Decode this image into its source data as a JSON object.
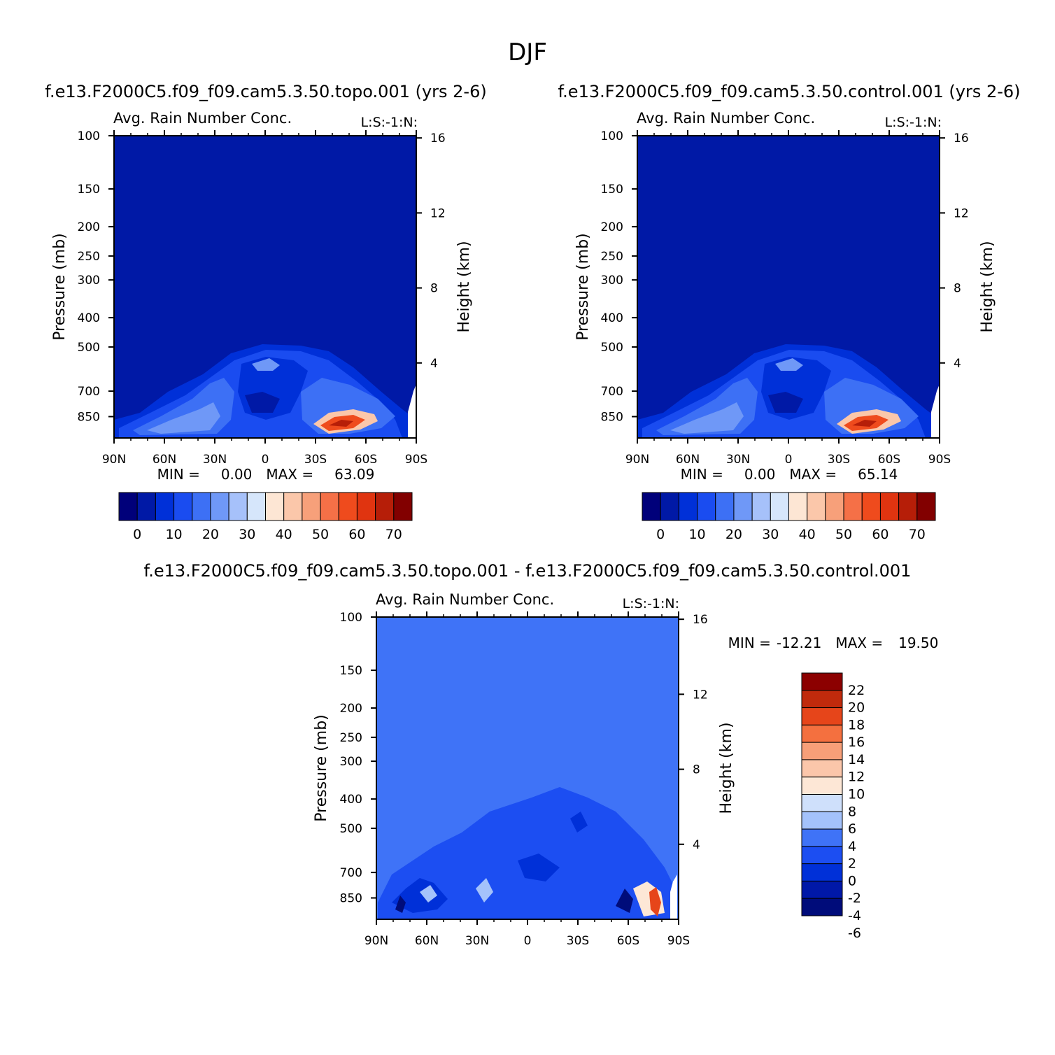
{
  "figure": {
    "title": "DJF",
    "colors": {
      "contour_scale": [
        "#00007a",
        "#0019a6",
        "#0030d8",
        "#1a4cf0",
        "#3d70f5",
        "#6f98f7",
        "#a6c1fa",
        "#d6e6fb",
        "#fde6d4",
        "#fbc7aa",
        "#f7a07a",
        "#f57047",
        "#ef4b1d",
        "#e03410",
        "#b61e08",
        "#820000"
      ],
      "background_field": "#0a28c4",
      "diff_background": "#3f73f7",
      "diff_scale": [
        "#000c7a",
        "#0018a8",
        "#0030d8",
        "#1c4ef2",
        "#3f73f7",
        "#a4c2fb",
        "#cfe0fb",
        "#fde7d6",
        "#fbc6aa",
        "#f79f78",
        "#f4703f",
        "#e6451a",
        "#c02a0c",
        "#8c0000"
      ]
    }
  },
  "chart_data": [
    {
      "type": "heatmap",
      "title": "f.e13.F2000C5.f09_f09.cam5.3.50.topo.001 (yrs 2-6)",
      "subtitle": "Avg. Rain Number Conc.",
      "corner_label": "L:S:-1:N:",
      "xlabel": "",
      "ylabel": "Pressure (mb)",
      "y2label": "Height (km)",
      "x_ticks": [
        "90N",
        "60N",
        "30N",
        "0",
        "30S",
        "60S",
        "90S"
      ],
      "y_ticks": [
        100,
        150,
        200,
        250,
        300,
        400,
        500,
        700,
        850
      ],
      "y2_ticks": [
        16,
        12,
        8,
        4
      ],
      "ylim": [
        100,
        1000
      ],
      "y_scale": "log",
      "min_label": "MIN =",
      "min_value": "0.00",
      "max_label": "MAX =",
      "max_value": "63.09",
      "colorbar_labels": [
        "0",
        "10",
        "20",
        "30",
        "40",
        "50",
        "60",
        "70"
      ]
    },
    {
      "type": "heatmap",
      "title": "f.e13.F2000C5.f09_f09.cam5.3.50.control.001 (yrs 2-6)",
      "subtitle": "Avg. Rain Number Conc.",
      "corner_label": "L:S:-1:N:",
      "xlabel": "",
      "ylabel": "Pressure (mb)",
      "y2label": "Height (km)",
      "x_ticks": [
        "90N",
        "60N",
        "30N",
        "0",
        "30S",
        "60S",
        "90S"
      ],
      "y_ticks": [
        100,
        150,
        200,
        250,
        300,
        400,
        500,
        700,
        850
      ],
      "y2_ticks": [
        16,
        12,
        8,
        4
      ],
      "ylim": [
        100,
        1000
      ],
      "y_scale": "log",
      "min_label": "MIN =",
      "min_value": "0.00",
      "max_label": "MAX =",
      "max_value": "65.14",
      "colorbar_labels": [
        "0",
        "10",
        "20",
        "30",
        "40",
        "50",
        "60",
        "70"
      ]
    },
    {
      "type": "heatmap",
      "title": "f.e13.F2000C5.f09_f09.cam5.3.50.topo.001 - f.e13.F2000C5.f09_f09.cam5.3.50.control.001",
      "subtitle": "Avg. Rain Number Conc.",
      "corner_label": "L:S:-1:N:",
      "xlabel": "",
      "ylabel": "Pressure (mb)",
      "y2label": "Height (km)",
      "x_ticks": [
        "90N",
        "60N",
        "30N",
        "0",
        "30S",
        "60S",
        "90S"
      ],
      "y_ticks": [
        100,
        150,
        200,
        250,
        300,
        400,
        500,
        700,
        850
      ],
      "y2_ticks": [
        16,
        12,
        8,
        4
      ],
      "ylim": [
        100,
        1000
      ],
      "y_scale": "log",
      "min_label": "MIN =",
      "min_value": "-12.21",
      "max_label": "MAX =",
      "max_value": "19.50",
      "colorbar_labels": [
        "22",
        "20",
        "18",
        "16",
        "14",
        "12",
        "10",
        "8",
        "6",
        "4",
        "2",
        "0",
        "-2",
        "-4",
        "-6"
      ]
    }
  ]
}
